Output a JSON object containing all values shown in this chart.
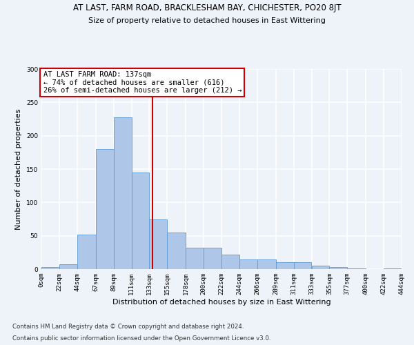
{
  "title": "AT LAST, FARM ROAD, BRACKLESHAM BAY, CHICHESTER, PO20 8JT",
  "subtitle": "Size of property relative to detached houses in East Wittering",
  "xlabel": "Distribution of detached houses by size in East Wittering",
  "ylabel": "Number of detached properties",
  "footer1": "Contains HM Land Registry data © Crown copyright and database right 2024.",
  "footer2": "Contains public sector information licensed under the Open Government Licence v3.0.",
  "annotation_title": "AT LAST FARM ROAD: 137sqm",
  "annotation_line1": "← 74% of detached houses are smaller (616)",
  "annotation_line2": "26% of semi-detached houses are larger (212) →",
  "property_size": 137,
  "bar_edges": [
    0,
    22,
    44,
    67,
    89,
    111,
    133,
    155,
    178,
    200,
    222,
    244,
    266,
    289,
    311,
    333,
    355,
    377,
    400,
    422,
    444
  ],
  "bar_heights": [
    3,
    7,
    52,
    180,
    228,
    145,
    75,
    55,
    32,
    32,
    22,
    15,
    15,
    10,
    10,
    5,
    3,
    1,
    0,
    1
  ],
  "bar_color": "#aec6e8",
  "bar_edge_color": "#5b9bd5",
  "vline_color": "#cc0000",
  "vline_x": 137,
  "background_color": "#eef2f9",
  "plot_background": "#eef2f9",
  "grid_color": "#ffffff",
  "tick_labels": [
    "0sqm",
    "22sqm",
    "44sqm",
    "67sqm",
    "89sqm",
    "111sqm",
    "133sqm",
    "155sqm",
    "178sqm",
    "200sqm",
    "222sqm",
    "244sqm",
    "266sqm",
    "289sqm",
    "311sqm",
    "333sqm",
    "355sqm",
    "377sqm",
    "400sqm",
    "422sqm",
    "444sqm"
  ],
  "ylim": [
    0,
    300
  ],
  "yticks": [
    0,
    50,
    100,
    150,
    200,
    250,
    300
  ],
  "annotation_box_color": "#ffffff",
  "annotation_box_edge": "#cc0000",
  "title_fontsize": 8.5,
  "subtitle_fontsize": 8,
  "axis_label_fontsize": 8,
  "tick_fontsize": 6.5,
  "annotation_fontsize": 7.5,
  "footer_fontsize": 6.2
}
